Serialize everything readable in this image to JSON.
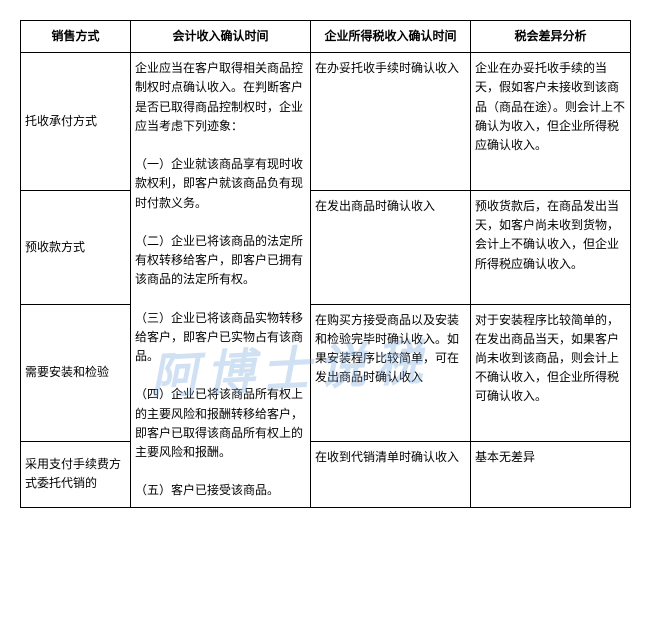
{
  "watermark": "阿博士说税",
  "table": {
    "columns": [
      "销售方式",
      "会计收入确认时间",
      "企业所得税收入确认时间",
      "税会差异分析"
    ],
    "col2_merged": "企业应当在客户取得相关商品控制权时点确认收入。在判断客户是否已取得商品控制权时，企业应当考虑下列迹象：\n\n（一）企业就该商品享有现时收款权利，即客户就该商品负有现时付款义务。\n\n（二）企业已将该商品的法定所有权转移给客户，即客户已拥有该商品的法定所有权。\n\n（三）企业已将该商品实物转移给客户，即客户已实物占有该商品。\n\n（四）企业已将该商品所有权上的主要风险和报酬转移给客户，即客户已取得该商品所有权上的主要风险和报酬。\n\n（五）客户已接受该商品。",
    "rows": [
      {
        "c1": "托收承付方式",
        "c3": "在办妥托收手续时确认收入",
        "c4": "企业在办妥托收手续的当天，假如客户未接收到该商品（商品在途）。则会计上不确认为收入，但企业所得税应确认收入。"
      },
      {
        "c1": "预收款方式",
        "c3": "在发出商品时确认收入",
        "c4": "预收货款后，在商品发出当天，如客户尚未收到货物，会计上不确认收入，但企业所得税应确认收入。"
      },
      {
        "c1": "需要安装和检验",
        "c3": "在购买方接受商品以及安装和检验完毕时确认收入。如果安装程序比较简单，可在发出商品时确认收入",
        "c4": "对于安装程序比较简单的，在发出商品当天，如果客户尚未收到该商品，则会计上不确认收入，但企业所得税可确认收入。"
      },
      {
        "c1": "采用支付手续费方式委托代销的",
        "c3": "在收到代销清单时确认收入",
        "c4": "基本无差异"
      }
    ],
    "border_color": "#000000",
    "background_color": "#ffffff",
    "font_size": 12,
    "header_font_weight": "bold"
  }
}
